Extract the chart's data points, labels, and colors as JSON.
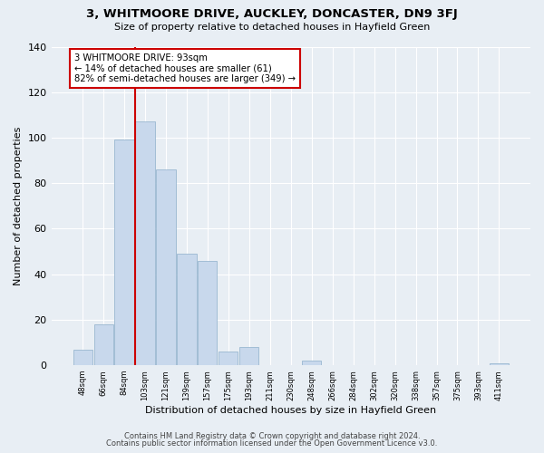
{
  "title": "3, WHITMOORE DRIVE, AUCKLEY, DONCASTER, DN9 3FJ",
  "subtitle": "Size of property relative to detached houses in Hayfield Green",
  "xlabel": "Distribution of detached houses by size in Hayfield Green",
  "ylabel": "Number of detached properties",
  "bar_labels": [
    "48sqm",
    "66sqm",
    "84sqm",
    "103sqm",
    "121sqm",
    "139sqm",
    "157sqm",
    "175sqm",
    "193sqm",
    "211sqm",
    "230sqm",
    "248sqm",
    "266sqm",
    "284sqm",
    "302sqm",
    "320sqm",
    "338sqm",
    "357sqm",
    "375sqm",
    "393sqm",
    "411sqm"
  ],
  "bar_values": [
    7,
    18,
    99,
    107,
    86,
    49,
    46,
    6,
    8,
    0,
    0,
    2,
    0,
    0,
    0,
    0,
    0,
    0,
    0,
    0,
    1
  ],
  "bar_color": "#c8d8ec",
  "bar_edge_color": "#9ab8d0",
  "vline_index": 2,
  "vline_color": "#cc0000",
  "ylim": [
    0,
    140
  ],
  "yticks": [
    0,
    20,
    40,
    60,
    80,
    100,
    120,
    140
  ],
  "annotation_line1": "3 WHITMOORE DRIVE: 93sqm",
  "annotation_line2": "← 14% of detached houses are smaller (61)",
  "annotation_line3": "82% of semi-detached houses are larger (349) →",
  "annotation_box_color": "#ffffff",
  "annotation_box_edge": "#cc0000",
  "footer_line1": "Contains HM Land Registry data © Crown copyright and database right 2024.",
  "footer_line2": "Contains public sector information licensed under the Open Government Licence v3.0.",
  "background_color": "#e8eef4",
  "grid_color": "#ffffff"
}
